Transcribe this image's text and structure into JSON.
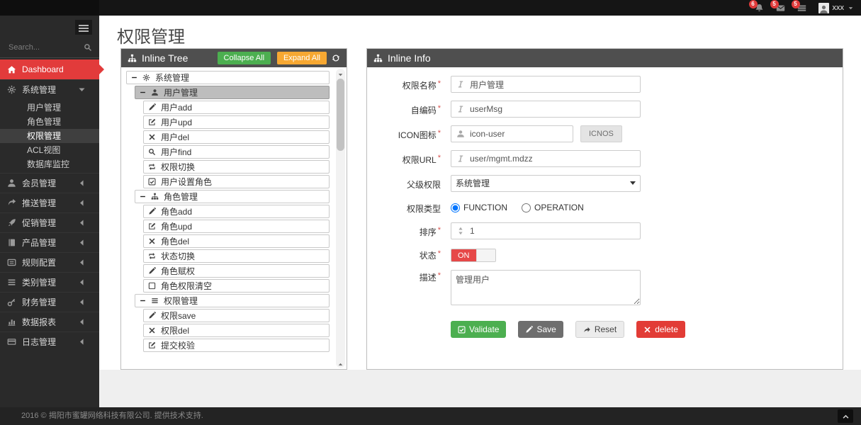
{
  "topbar": {
    "notifications": [
      {
        "icon": "bell-icon",
        "count": "6"
      },
      {
        "icon": "envelope-icon",
        "count": "5"
      },
      {
        "icon": "tasks-icon",
        "count": "5"
      }
    ],
    "user": {
      "name": "xxx"
    }
  },
  "sidebar": {
    "search_placeholder": "Search...",
    "items": [
      {
        "id": "dashboard",
        "label": "Dashboard",
        "icon": "home",
        "active": true
      },
      {
        "id": "system",
        "label": "系统管理",
        "icon": "gear",
        "caret": "down",
        "expanded": true,
        "children": [
          "用户管理",
          "角色管理",
          "权限管理",
          "ACL视图",
          "数据库监控"
        ],
        "active_child": "权限管理"
      },
      {
        "id": "member",
        "label": "会员管理",
        "icon": "user",
        "caret": "left"
      },
      {
        "id": "push",
        "label": "推送管理",
        "icon": "share",
        "caret": "left"
      },
      {
        "id": "promo",
        "label": "促销管理",
        "icon": "rocket",
        "caret": "left"
      },
      {
        "id": "product",
        "label": "产品管理",
        "icon": "book",
        "caret": "left"
      },
      {
        "id": "rule",
        "label": "规则配置",
        "icon": "list-alt",
        "caret": "left"
      },
      {
        "id": "category",
        "label": "类别管理",
        "icon": "bars",
        "caret": "left"
      },
      {
        "id": "finance",
        "label": "财务管理",
        "icon": "key",
        "caret": "left"
      },
      {
        "id": "report",
        "label": "数据报表",
        "icon": "chart",
        "caret": "left"
      },
      {
        "id": "log",
        "label": "日志管理",
        "icon": "card",
        "caret": "left"
      }
    ]
  },
  "page": {
    "title": "权限管理"
  },
  "tree_panel": {
    "title": "Inline Tree",
    "collapse_all": "Collapse All",
    "expand_all": "Expand All",
    "nodes": [
      {
        "label": "系统管理",
        "icon": "gear",
        "level": 0,
        "expandable": true
      },
      {
        "label": "用户管理",
        "icon": "user",
        "level": 1,
        "expandable": true,
        "selected": true
      },
      {
        "label": "用户add",
        "icon": "pencil",
        "level": 2
      },
      {
        "label": "用户upd",
        "icon": "edit",
        "level": 2
      },
      {
        "label": "用户del",
        "icon": "times",
        "level": 2
      },
      {
        "label": "用户find",
        "icon": "search",
        "level": 2
      },
      {
        "label": "权限切换",
        "icon": "retweet",
        "level": 2
      },
      {
        "label": "用户设置角色",
        "icon": "check-square",
        "level": 2
      },
      {
        "label": "角色管理",
        "icon": "tree",
        "level": 1,
        "expandable": true
      },
      {
        "label": "角色add",
        "icon": "pencil",
        "level": 2
      },
      {
        "label": "角色upd",
        "icon": "edit",
        "level": 2
      },
      {
        "label": "角色del",
        "icon": "times",
        "level": 2
      },
      {
        "label": "状态切换",
        "icon": "retweet",
        "level": 2
      },
      {
        "label": "角色赋权",
        "icon": "pencil",
        "level": 2
      },
      {
        "label": "角色权限清空",
        "icon": "square",
        "level": 2
      },
      {
        "label": "权限管理",
        "icon": "bars",
        "level": 1,
        "expandable": true
      },
      {
        "label": "权限save",
        "icon": "pencil",
        "level": 2
      },
      {
        "label": "权限del",
        "icon": "times",
        "level": 2
      },
      {
        "label": "提交校验",
        "icon": "edit",
        "level": 2
      }
    ]
  },
  "info_panel": {
    "title": "Inline Info",
    "fields": {
      "name": {
        "label": "权限名称",
        "value": "用户管理"
      },
      "code": {
        "label": "自编码",
        "value": "userMsg"
      },
      "icon": {
        "label": "ICON图标",
        "value": "icon-user",
        "button": "ICNOS"
      },
      "url": {
        "label": "权限URL",
        "value": "user/mgmt.mdzz"
      },
      "parent": {
        "label": "父级权限",
        "value": "系统管理"
      },
      "type": {
        "label": "权限类型",
        "options": [
          {
            "label": "FUNCTION",
            "selected": true
          },
          {
            "label": "OPERATION",
            "selected": false
          }
        ]
      },
      "sort": {
        "label": "排序",
        "value": "1"
      },
      "status": {
        "label": "状态",
        "value": "ON"
      },
      "desc": {
        "label": "描述",
        "value": "管理用户"
      }
    },
    "buttons": {
      "validate": "Validate",
      "save": "Save",
      "reset": "Reset",
      "delete": "delete"
    }
  },
  "footer": {
    "text": "2016 © 揭阳市蜜罐网络科技有限公司. 提供技术支持."
  },
  "colors": {
    "accent_red": "#e23b3b",
    "green": "#4caf50",
    "orange": "#f7a832",
    "dark_header": "#4f4f4f",
    "toggle_on": "#e64848"
  }
}
